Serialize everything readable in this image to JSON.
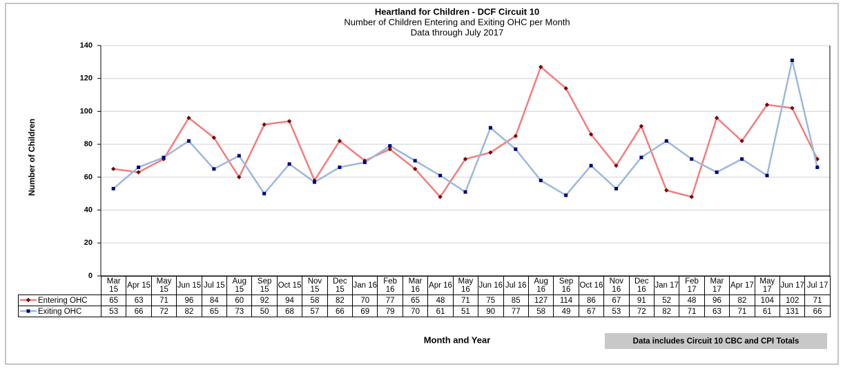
{
  "chart_data": {
    "type": "line",
    "title": "Heartland for Children - DCF Circuit 10",
    "subtitle": [
      "Number of Children Entering and Exiting OHC per Month",
      "Data through  July 2017"
    ],
    "ylabel": "Number of Children",
    "xlabel": "Month and Year",
    "note": "Data includes Circuit 10 CBC and CPI Totals",
    "categories": [
      "Mar 15",
      "Apr 15",
      "May 15",
      "Jun 15",
      "Jul 15",
      "Aug 15",
      "Sep 15",
      "Oct 15",
      "Nov 15",
      "Dec 15",
      "Jan 16",
      "Feb 16",
      "Mar 16",
      "Apr 16",
      "May 16",
      "Jun 16",
      "Jul 16",
      "Aug 16",
      "Sep 16",
      "Oct 16",
      "Nov 16",
      "Dec 16",
      "Jan 17",
      "Feb 17",
      "Mar 17",
      "Apr 17",
      "May 17",
      "Jun 17",
      "Jul 17"
    ],
    "series": [
      {
        "name": "Entering OHC",
        "color": "#f47c7c",
        "marker_color": "#7a0000",
        "marker": "diamond",
        "values": [
          65,
          63,
          71,
          96,
          84,
          60,
          92,
          94,
          58,
          82,
          70,
          77,
          65,
          48,
          71,
          75,
          85,
          127,
          114,
          86,
          67,
          91,
          52,
          48,
          96,
          82,
          104,
          102,
          71
        ]
      },
      {
        "name": "Exiting OHC",
        "color": "#9ab8dc",
        "marker_color": "#000080",
        "marker": "square",
        "values": [
          53,
          66,
          72,
          82,
          65,
          73,
          50,
          68,
          57,
          66,
          69,
          79,
          70,
          61,
          51,
          90,
          77,
          58,
          49,
          67,
          53,
          72,
          82,
          71,
          63,
          71,
          61,
          131,
          66
        ]
      }
    ],
    "ylim": [
      0,
      140
    ],
    "yticks": [
      0,
      20,
      40,
      60,
      80,
      100,
      120,
      140
    ],
    "grid": true
  }
}
